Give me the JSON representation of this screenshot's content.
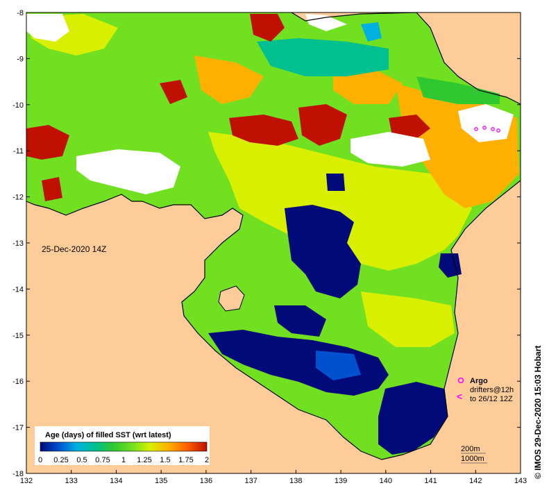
{
  "map": {
    "timestamp": "25-Dec-2020 14Z",
    "credit": "© IMOS 29-Dec-2020 15:03 Hobart",
    "x_ticks": [
      "132",
      "133",
      "134",
      "135",
      "136",
      "137",
      "138",
      "139",
      "140",
      "141",
      "142",
      "143"
    ],
    "y_ticks": [
      "-8",
      "-9",
      "-10",
      "-11",
      "-12",
      "-13",
      "-14",
      "-15",
      "-16",
      "-17",
      "-18"
    ],
    "extent": {
      "lon": [
        132,
        143
      ],
      "lat": [
        -18,
        -8
      ]
    },
    "colorbar": {
      "title": "Age (days) of filled SST (wrt latest)",
      "ticks": [
        "0",
        "0.25",
        "0.5",
        "0.75",
        "1",
        "1.25",
        "1.5",
        "1.75",
        "2"
      ],
      "colors": [
        "#000a78",
        "#0050d0",
        "#00b0e0",
        "#00c090",
        "#30c830",
        "#70e020",
        "#d8f000",
        "#ffb000",
        "#ff6000",
        "#c01000"
      ]
    },
    "legend": {
      "argo": "Argo",
      "drifters_line1": "drifters@12h",
      "drifters_line2": "to 26/12 12Z",
      "depth1": "200m",
      "depth2": "1000m"
    },
    "colors": {
      "land": "#fecc99",
      "coast": "#000000",
      "missing": "#ffffff",
      "argo": "#ff00ff"
    }
  }
}
